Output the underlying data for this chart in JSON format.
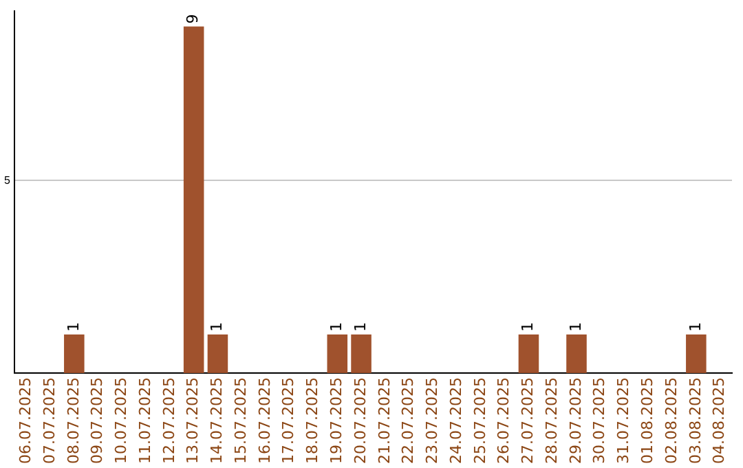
{
  "chart_data": {
    "type": "bar",
    "categories": [
      "06.07.2025",
      "07.07.2025",
      "08.07.2025",
      "09.07.2025",
      "10.07.2025",
      "11.07.2025",
      "12.07.2025",
      "13.07.2025",
      "14.07.2025",
      "15.07.2025",
      "16.07.2025",
      "17.07.2025",
      "18.07.2025",
      "19.07.2025",
      "20.07.2025",
      "21.07.2025",
      "22.07.2025",
      "23.07.2025",
      "24.07.2025",
      "25.07.2025",
      "26.07.2025",
      "27.07.2025",
      "28.07.2025",
      "29.07.2025",
      "30.07.2025",
      "31.07.2025",
      "01.08.2025",
      "02.08.2025",
      "03.08.2025",
      "04.08.2025"
    ],
    "values": [
      0,
      0,
      1,
      0,
      0,
      0,
      0,
      9,
      1,
      0,
      0,
      0,
      0,
      1,
      1,
      0,
      0,
      0,
      0,
      0,
      0,
      1,
      0,
      1,
      0,
      0,
      0,
      0,
      1,
      0
    ],
    "value_labels": [
      null,
      null,
      "1",
      null,
      null,
      null,
      null,
      "9",
      "1",
      null,
      null,
      null,
      null,
      "1",
      "1",
      null,
      null,
      null,
      null,
      null,
      null,
      "1",
      null,
      "1",
      null,
      null,
      null,
      null,
      "1",
      null
    ],
    "color": "#a0522d",
    "ylim": [
      0,
      9.4
    ],
    "yticks": [
      5
    ],
    "grid": "y"
  }
}
